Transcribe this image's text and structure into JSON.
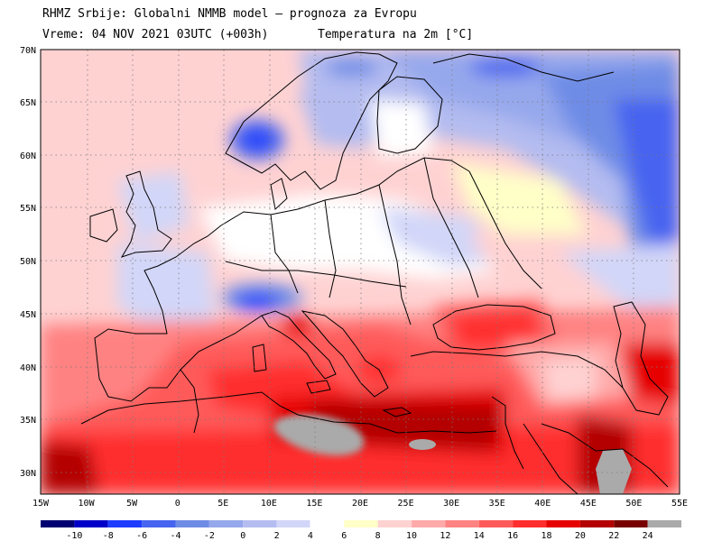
{
  "header": {
    "line1": "RHMZ Srbije: Globalni NMMB model — prognoza za Evropu",
    "line2_left": "Vreme: 04 NOV 2021 03UTC (+003h)",
    "line2_right": "Temperatura na 2m [°C]"
  },
  "lat_labels": [
    "70N",
    "65N",
    "60N",
    "55N",
    "50N",
    "45N",
    "40N",
    "35N",
    "30N"
  ],
  "lon_labels": [
    "15W",
    "10W",
    "5W",
    "0",
    "5E",
    "10E",
    "15E",
    "20E",
    "25E",
    "30E",
    "35E",
    "40E",
    "45E",
    "50E",
    "55E"
  ],
  "legend": {
    "values": [
      "-10",
      "-8",
      "-6",
      "-4",
      "-2",
      "0",
      "2",
      "4",
      "6",
      "8",
      "10",
      "12",
      "14",
      "16",
      "18",
      "20",
      "22",
      "24"
    ],
    "colors": [
      "#000070",
      "#0000c8",
      "#1e3cff",
      "#4664f0",
      "#6e8ce6",
      "#96a8ec",
      "#b4bcf0",
      "#d2d6f8",
      "#ffffff",
      "#ffffc8",
      "#ffd2d2",
      "#ffaaaa",
      "#ff8282",
      "#ff5a5a",
      "#ff2d2d",
      "#e60000",
      "#b40000",
      "#780000",
      "#aaaaaa"
    ]
  },
  "map": {
    "variable": "Temperatura na 2m",
    "unit": "°C",
    "lat_range": [
      28,
      70
    ],
    "lon_range": [
      -15,
      55
    ],
    "colors": {
      "land_no_data": "#aaaaaa",
      "grid": "#7a7a7a",
      "coast": "#000000"
    }
  }
}
